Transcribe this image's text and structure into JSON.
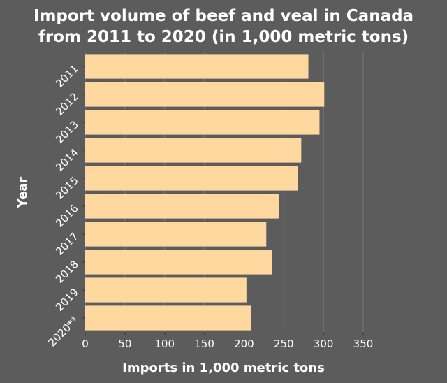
{
  "chart_data": {
    "type": "bar",
    "orientation": "horizontal",
    "title": "Import volume of beef and veal in Canada from 2011 to 2020 (in 1,000 metric tons)",
    "title_lines": [
      "Import volume of beef and veal in Canada",
      "from 2011 to 2020 (in 1,000 metric tons)"
    ],
    "xlabel": "Imports in 1,000 metric tons",
    "ylabel": "Year",
    "categories": [
      "2011",
      "2012",
      "2013",
      "2014",
      "2015",
      "2016",
      "2017",
      "2018",
      "2019",
      "2020**"
    ],
    "values": [
      281,
      301,
      295,
      272,
      268,
      244,
      228,
      235,
      203,
      209
    ],
    "xlim": [
      0,
      350
    ],
    "xticks": [
      0,
      50,
      100,
      150,
      200,
      250,
      300,
      350
    ],
    "grid": true,
    "colors": {
      "bar": "#ffd8a0",
      "background": "#5c5c5c",
      "grid": "#7a7a7a",
      "text": "#ffffff"
    }
  }
}
